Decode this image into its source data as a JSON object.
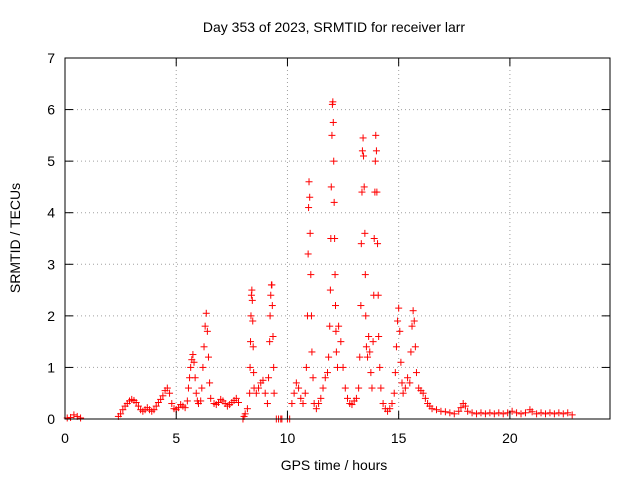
{
  "chart_data": {
    "type": "scatter",
    "title": "Day 353 of 2023, SRMTID for receiver larr",
    "xlabel": "GPS time / hours",
    "ylabel": "SRMTID / TECUs",
    "xlim": [
      0,
      24.5
    ],
    "ylim": [
      0,
      7
    ],
    "xticks": [
      0,
      5,
      10,
      15,
      20
    ],
    "yticks": [
      0,
      1,
      2,
      3,
      4,
      5,
      6,
      7
    ],
    "grid": true,
    "marker": "plus",
    "color": "#ff0000",
    "series": [
      {
        "name": "SRMTID",
        "points": [
          [
            0.1,
            0.02
          ],
          [
            0.25,
            0.03
          ],
          [
            0.4,
            0.08
          ],
          [
            0.55,
            0.05
          ],
          [
            0.7,
            0.02
          ],
          [
            2.4,
            0.05
          ],
          [
            2.5,
            0.1
          ],
          [
            2.6,
            0.18
          ],
          [
            2.7,
            0.25
          ],
          [
            2.8,
            0.3
          ],
          [
            2.9,
            0.35
          ],
          [
            3.0,
            0.38
          ],
          [
            3.1,
            0.36
          ],
          [
            3.2,
            0.32
          ],
          [
            3.3,
            0.25
          ],
          [
            3.4,
            0.18
          ],
          [
            3.5,
            0.15
          ],
          [
            3.6,
            0.18
          ],
          [
            3.7,
            0.22
          ],
          [
            3.8,
            0.18
          ],
          [
            3.9,
            0.15
          ],
          [
            4.0,
            0.18
          ],
          [
            4.1,
            0.25
          ],
          [
            4.2,
            0.32
          ],
          [
            4.3,
            0.38
          ],
          [
            4.4,
            0.45
          ],
          [
            4.5,
            0.55
          ],
          [
            4.6,
            0.6
          ],
          [
            4.7,
            0.5
          ],
          [
            4.8,
            0.3
          ],
          [
            4.9,
            0.2
          ],
          [
            5.0,
            0.18
          ],
          [
            5.1,
            0.22
          ],
          [
            5.2,
            0.28
          ],
          [
            5.3,
            0.25
          ],
          [
            5.4,
            0.22
          ],
          [
            5.5,
            0.35
          ],
          [
            5.55,
            0.6
          ],
          [
            5.6,
            0.8
          ],
          [
            5.65,
            1.0
          ],
          [
            5.7,
            1.15
          ],
          [
            5.75,
            1.25
          ],
          [
            5.8,
            1.1
          ],
          [
            5.85,
            0.8
          ],
          [
            5.9,
            0.5
          ],
          [
            5.95,
            0.35
          ],
          [
            6.0,
            0.3
          ],
          [
            6.1,
            0.35
          ],
          [
            6.15,
            0.6
          ],
          [
            6.2,
            1.0
          ],
          [
            6.25,
            1.4
          ],
          [
            6.3,
            1.8
          ],
          [
            6.35,
            2.05
          ],
          [
            6.4,
            1.7
          ],
          [
            6.45,
            1.2
          ],
          [
            6.5,
            0.7
          ],
          [
            6.55,
            0.4
          ],
          [
            6.7,
            0.3
          ],
          [
            6.8,
            0.28
          ],
          [
            6.9,
            0.32
          ],
          [
            7.0,
            0.38
          ],
          [
            7.1,
            0.35
          ],
          [
            7.2,
            0.3
          ],
          [
            7.3,
            0.25
          ],
          [
            7.4,
            0.28
          ],
          [
            7.5,
            0.32
          ],
          [
            7.6,
            0.36
          ],
          [
            7.7,
            0.4
          ],
          [
            7.8,
            0.32
          ],
          [
            8.0,
            0.0
          ],
          [
            8.05,
            0.05
          ],
          [
            8.1,
            0.1
          ],
          [
            8.2,
            0.2
          ],
          [
            8.3,
            0.5
          ],
          [
            8.32,
            1.0
          ],
          [
            8.34,
            1.5
          ],
          [
            8.36,
            2.0
          ],
          [
            8.38,
            2.4
          ],
          [
            8.4,
            2.5
          ],
          [
            8.42,
            2.3
          ],
          [
            8.44,
            1.9
          ],
          [
            8.46,
            1.4
          ],
          [
            8.48,
            0.9
          ],
          [
            8.5,
            0.6
          ],
          [
            8.6,
            0.5
          ],
          [
            8.7,
            0.6
          ],
          [
            8.8,
            0.7
          ],
          [
            8.9,
            0.75
          ],
          [
            9.0,
            0.5
          ],
          [
            9.1,
            0.3
          ],
          [
            9.15,
            0.8
          ],
          [
            9.2,
            1.5
          ],
          [
            9.22,
            2.0
          ],
          [
            9.25,
            2.4
          ],
          [
            9.28,
            2.6
          ],
          [
            9.3,
            2.6
          ],
          [
            9.32,
            2.2
          ],
          [
            9.35,
            1.6
          ],
          [
            9.38,
            1.0
          ],
          [
            9.4,
            0.5
          ],
          [
            9.5,
            0.0
          ],
          [
            9.6,
            0.0
          ],
          [
            9.7,
            0.0
          ],
          [
            9.75,
            0.0
          ],
          [
            10.0,
            0.0
          ],
          [
            10.1,
            0.0
          ],
          [
            10.2,
            0.3
          ],
          [
            10.3,
            0.5
          ],
          [
            10.4,
            0.7
          ],
          [
            10.5,
            0.6
          ],
          [
            10.6,
            0.4
          ],
          [
            10.7,
            0.3
          ],
          [
            10.8,
            0.5
          ],
          [
            10.85,
            1.0
          ],
          [
            10.9,
            2.0
          ],
          [
            10.93,
            3.2
          ],
          [
            10.95,
            4.1
          ],
          [
            10.97,
            4.6
          ],
          [
            11.0,
            4.3
          ],
          [
            11.02,
            3.6
          ],
          [
            11.05,
            2.8
          ],
          [
            11.08,
            2.0
          ],
          [
            11.1,
            1.3
          ],
          [
            11.15,
            0.8
          ],
          [
            11.2,
            0.3
          ],
          [
            11.3,
            0.2
          ],
          [
            11.4,
            0.3
          ],
          [
            11.5,
            0.4
          ],
          [
            11.6,
            0.6
          ],
          [
            11.7,
            0.8
          ],
          [
            11.8,
            0.9
          ],
          [
            11.85,
            1.2
          ],
          [
            11.9,
            1.8
          ],
          [
            11.93,
            2.5
          ],
          [
            11.95,
            3.5
          ],
          [
            11.97,
            4.5
          ],
          [
            12.0,
            5.5
          ],
          [
            12.02,
            6.1
          ],
          [
            12.04,
            6.15
          ],
          [
            12.06,
            5.75
          ],
          [
            12.08,
            5.0
          ],
          [
            12.1,
            4.2
          ],
          [
            12.12,
            3.5
          ],
          [
            12.14,
            2.8
          ],
          [
            12.16,
            2.2
          ],
          [
            12.18,
            1.7
          ],
          [
            12.2,
            1.3
          ],
          [
            12.25,
            1.0
          ],
          [
            12.3,
            1.8
          ],
          [
            12.4,
            1.5
          ],
          [
            12.5,
            1.0
          ],
          [
            12.6,
            0.6
          ],
          [
            12.7,
            0.4
          ],
          [
            12.8,
            0.3
          ],
          [
            12.9,
            0.28
          ],
          [
            13.0,
            0.35
          ],
          [
            13.1,
            0.4
          ],
          [
            13.2,
            0.6
          ],
          [
            13.25,
            1.2
          ],
          [
            13.3,
            2.2
          ],
          [
            13.32,
            3.4
          ],
          [
            13.35,
            4.4
          ],
          [
            13.37,
            5.2
          ],
          [
            13.4,
            5.45
          ],
          [
            13.42,
            5.1
          ],
          [
            13.45,
            4.5
          ],
          [
            13.48,
            3.6
          ],
          [
            13.5,
            2.8
          ],
          [
            13.52,
            2.0
          ],
          [
            13.55,
            1.4
          ],
          [
            13.6,
            1.2
          ],
          [
            13.65,
            1.6
          ],
          [
            13.7,
            1.3
          ],
          [
            13.75,
            0.9
          ],
          [
            13.8,
            0.6
          ],
          [
            13.85,
            1.5
          ],
          [
            13.88,
            2.4
          ],
          [
            13.9,
            3.5
          ],
          [
            13.93,
            4.4
          ],
          [
            13.95,
            5.0
          ],
          [
            13.97,
            5.5
          ],
          [
            14.0,
            5.2
          ],
          [
            14.02,
            4.4
          ],
          [
            14.05,
            3.4
          ],
          [
            14.08,
            2.4
          ],
          [
            14.1,
            1.6
          ],
          [
            14.15,
            1.0
          ],
          [
            14.2,
            0.6
          ],
          [
            14.3,
            0.3
          ],
          [
            14.4,
            0.2
          ],
          [
            14.5,
            0.15
          ],
          [
            14.6,
            0.2
          ],
          [
            14.7,
            0.3
          ],
          [
            14.8,
            0.5
          ],
          [
            14.85,
            0.9
          ],
          [
            14.9,
            1.4
          ],
          [
            14.95,
            1.9
          ],
          [
            15.0,
            2.15
          ],
          [
            15.05,
            1.7
          ],
          [
            15.1,
            1.1
          ],
          [
            15.15,
            0.7
          ],
          [
            15.2,
            0.5
          ],
          [
            15.3,
            0.6
          ],
          [
            15.4,
            0.8
          ],
          [
            15.5,
            0.7
          ],
          [
            15.55,
            1.3
          ],
          [
            15.6,
            1.8
          ],
          [
            15.65,
            2.1
          ],
          [
            15.7,
            1.9
          ],
          [
            15.75,
            1.4
          ],
          [
            15.8,
            0.9
          ],
          [
            15.9,
            0.6
          ],
          [
            16.0,
            0.55
          ],
          [
            16.1,
            0.5
          ],
          [
            16.2,
            0.4
          ],
          [
            16.3,
            0.3
          ],
          [
            16.4,
            0.25
          ],
          [
            16.5,
            0.2
          ],
          [
            16.7,
            0.18
          ],
          [
            16.9,
            0.15
          ],
          [
            17.1,
            0.14
          ],
          [
            17.3,
            0.12
          ],
          [
            17.5,
            0.1
          ],
          [
            17.7,
            0.15
          ],
          [
            17.8,
            0.22
          ],
          [
            17.9,
            0.3
          ],
          [
            18.0,
            0.25
          ],
          [
            18.1,
            0.15
          ],
          [
            18.3,
            0.12
          ],
          [
            18.5,
            0.1
          ],
          [
            18.7,
            0.12
          ],
          [
            18.9,
            0.1
          ],
          [
            19.1,
            0.12
          ],
          [
            19.3,
            0.1
          ],
          [
            19.5,
            0.12
          ],
          [
            19.7,
            0.1
          ],
          [
            19.9,
            0.12
          ],
          [
            20.1,
            0.15
          ],
          [
            20.3,
            0.12
          ],
          [
            20.5,
            0.1
          ],
          [
            20.7,
            0.12
          ],
          [
            20.9,
            0.18
          ],
          [
            21.0,
            0.14
          ],
          [
            21.2,
            0.1
          ],
          [
            21.4,
            0.12
          ],
          [
            21.6,
            0.1
          ],
          [
            21.8,
            0.12
          ],
          [
            22.0,
            0.1
          ],
          [
            22.2,
            0.12
          ],
          [
            22.4,
            0.1
          ],
          [
            22.6,
            0.12
          ],
          [
            22.8,
            0.08
          ]
        ]
      }
    ]
  }
}
